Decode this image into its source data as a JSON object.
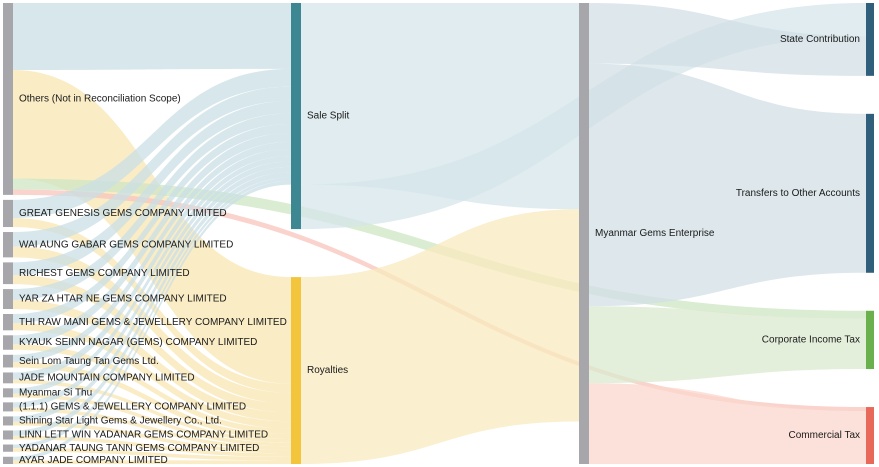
{
  "chart_data": {
    "type": "sankey",
    "title": "",
    "units": "relative flow value",
    "columns": [
      {
        "name": "sources",
        "nodes": [
          {
            "id": "others",
            "label": "Others (Not in Reconciliation Scope)",
            "color": "#a7a6ab"
          },
          {
            "id": "great-genesis",
            "label": "GREAT GENESIS GEMS COMPANY LIMITED",
            "color": "#a7a6ab"
          },
          {
            "id": "wai-aung-gabar",
            "label": "WAI AUNG GABAR GEMS COMPANY LIMITED",
            "color": "#a7a6ab"
          },
          {
            "id": "richest-gems",
            "label": "RICHEST GEMS COMPANY LIMITED",
            "color": "#a7a6ab"
          },
          {
            "id": "yar-za-htar-ne",
            "label": "YAR ZA HTAR NE GEMS COMPANY LIMITED",
            "color": "#a7a6ab"
          },
          {
            "id": "thi-raw-mani",
            "label": "THI RAW MANI GEMS & JEWELLERY COMPANY LIMITED",
            "color": "#a7a6ab"
          },
          {
            "id": "kyauk-seinn-nagar",
            "label": "KYAUK SEINN NAGAR (GEMS) COMPANY LIMITED",
            "color": "#a7a6ab"
          },
          {
            "id": "sein-lom",
            "label": "Sein Lom Taung Tan Gems Ltd.",
            "color": "#a7a6ab"
          },
          {
            "id": "jade-mountain",
            "label": "JADE MOUNTAIN COMPANY LIMITED",
            "color": "#a7a6ab"
          },
          {
            "id": "myanmar-si-thu",
            "label": "Myanmar Si Thu",
            "color": "#a7a6ab"
          },
          {
            "id": "one-one-one",
            "label": "(1.1.1) GEMS & JEWELLERY COMPANY LIMITED",
            "color": "#a7a6ab"
          },
          {
            "id": "shining-star",
            "label": "Shining Star Light Gems & Jewellery Co., Ltd.",
            "color": "#a7a6ab"
          },
          {
            "id": "linn-lett-win",
            "label": "LINN LETT WIN YADANAR GEMS COMPANY LIMITED",
            "color": "#a7a6ab"
          },
          {
            "id": "yadanar-taung-tann",
            "label": "YADANAR TAUNG TANN GEMS COMPANY LIMITED",
            "color": "#a7a6ab"
          },
          {
            "id": "ayar-jade",
            "label": "AYAR JADE COMPANY LIMITED",
            "color": "#a7a6ab"
          }
        ]
      },
      {
        "name": "payment types",
        "nodes": [
          {
            "id": "sale-split",
            "label": "Sale Split",
            "color": "#3d8793"
          },
          {
            "id": "royalties",
            "label": "Royalties",
            "color": "#f2c53d"
          }
        ]
      },
      {
        "name": "recipients",
        "nodes": [
          {
            "id": "mge",
            "label": "Myanmar Gems Enterprise",
            "color": "#a7a6ab"
          }
        ]
      },
      {
        "name": "destinations",
        "nodes": [
          {
            "id": "state-contribution",
            "label": "State Contribution",
            "color": "#2f5f7a"
          },
          {
            "id": "transfers",
            "label": "Transfers to Other Accounts",
            "color": "#2f5f7a"
          },
          {
            "id": "cit",
            "label": "Corporate Income Tax",
            "color": "#6ab04c"
          },
          {
            "id": "commercial-tax",
            "label": "Commercial Tax",
            "color": "#e8685a"
          }
        ]
      }
    ],
    "links": [
      {
        "source": "others",
        "target": "sale-split",
        "value": 37,
        "color": "#c9dfe6"
      },
      {
        "source": "others",
        "target": "royalties",
        "value": 60,
        "color": "#f8e6b2"
      },
      {
        "source": "others",
        "target": "cit",
        "value": 6,
        "color": "#cde5c3"
      },
      {
        "source": "others",
        "target": "commercial-tax",
        "value": 3,
        "color": "#f7c4bb"
      },
      {
        "source": "great-genesis",
        "target": "sale-split",
        "value": 10,
        "color": "#c9dfe6"
      },
      {
        "source": "great-genesis",
        "target": "royalties",
        "value": 5,
        "color": "#f8e6b2"
      },
      {
        "source": "wai-aung-gabar",
        "target": "sale-split",
        "value": 8,
        "color": "#c9dfe6"
      },
      {
        "source": "wai-aung-gabar",
        "target": "royalties",
        "value": 6,
        "color": "#f8e6b2"
      },
      {
        "source": "richest-gems",
        "target": "sale-split",
        "value": 7,
        "color": "#c9dfe6"
      },
      {
        "source": "richest-gems",
        "target": "royalties",
        "value": 5,
        "color": "#f8e6b2"
      },
      {
        "source": "yar-za-htar-ne",
        "target": "sale-split",
        "value": 6,
        "color": "#c9dfe6"
      },
      {
        "source": "yar-za-htar-ne",
        "target": "royalties",
        "value": 5,
        "color": "#f8e6b2"
      },
      {
        "source": "thi-raw-mani",
        "target": "sale-split",
        "value": 5,
        "color": "#c9dfe6"
      },
      {
        "source": "thi-raw-mani",
        "target": "royalties",
        "value": 4,
        "color": "#f8e6b2"
      },
      {
        "source": "kyauk-seinn-nagar",
        "target": "sale-split",
        "value": 5,
        "color": "#c9dfe6"
      },
      {
        "source": "kyauk-seinn-nagar",
        "target": "royalties",
        "value": 3,
        "color": "#f8e6b2"
      },
      {
        "source": "sein-lom",
        "target": "sale-split",
        "value": 4,
        "color": "#c9dfe6"
      },
      {
        "source": "sein-lom",
        "target": "royalties",
        "value": 3,
        "color": "#f8e6b2"
      },
      {
        "source": "jade-mountain",
        "target": "sale-split",
        "value": 4,
        "color": "#c9dfe6"
      },
      {
        "source": "jade-mountain",
        "target": "royalties",
        "value": 2,
        "color": "#f8e6b2"
      },
      {
        "source": "myanmar-si-thu",
        "target": "sale-split",
        "value": 3,
        "color": "#c9dfe6"
      },
      {
        "source": "myanmar-si-thu",
        "target": "royalties",
        "value": 2,
        "color": "#f8e6b2"
      },
      {
        "source": "one-one-one",
        "target": "sale-split",
        "value": 3,
        "color": "#c9dfe6"
      },
      {
        "source": "one-one-one",
        "target": "royalties",
        "value": 2,
        "color": "#f8e6b2"
      },
      {
        "source": "shining-star",
        "target": "sale-split",
        "value": 3,
        "color": "#c9dfe6"
      },
      {
        "source": "shining-star",
        "target": "royalties",
        "value": 2,
        "color": "#f8e6b2"
      },
      {
        "source": "linn-lett-win",
        "target": "sale-split",
        "value": 3,
        "color": "#c9dfe6"
      },
      {
        "source": "linn-lett-win",
        "target": "royalties",
        "value": 2,
        "color": "#f8e6b2"
      },
      {
        "source": "yadanar-taung-tann",
        "target": "sale-split",
        "value": 2,
        "color": "#c9dfe6"
      },
      {
        "source": "yadanar-taung-tann",
        "target": "royalties",
        "value": 2,
        "color": "#f8e6b2"
      },
      {
        "source": "ayar-jade",
        "target": "sale-split",
        "value": 2,
        "color": "#c9dfe6"
      },
      {
        "source": "ayar-jade",
        "target": "royalties",
        "value": 2,
        "color": "#f8e6b2"
      },
      {
        "source": "sale-split",
        "target": "mge",
        "value": 102,
        "color": "#d6e5ea"
      },
      {
        "source": "royalties",
        "target": "mge",
        "value": 105,
        "color": "#f8e9bd"
      },
      {
        "source": "sale-split",
        "target": "state-contribution",
        "value": 25,
        "color": "#d6e5ea"
      },
      {
        "source": "mge",
        "target": "state-contribution",
        "value": 30,
        "color": "#d2dfe6"
      },
      {
        "source": "mge",
        "target": "transfers",
        "value": 120,
        "color": "#d2dfe6"
      },
      {
        "source": "mge",
        "target": "cit",
        "value": 38,
        "color": "#dbeacf"
      },
      {
        "source": "mge",
        "target": "commercial-tax",
        "value": 40,
        "color": "#fbd7cd"
      }
    ]
  }
}
